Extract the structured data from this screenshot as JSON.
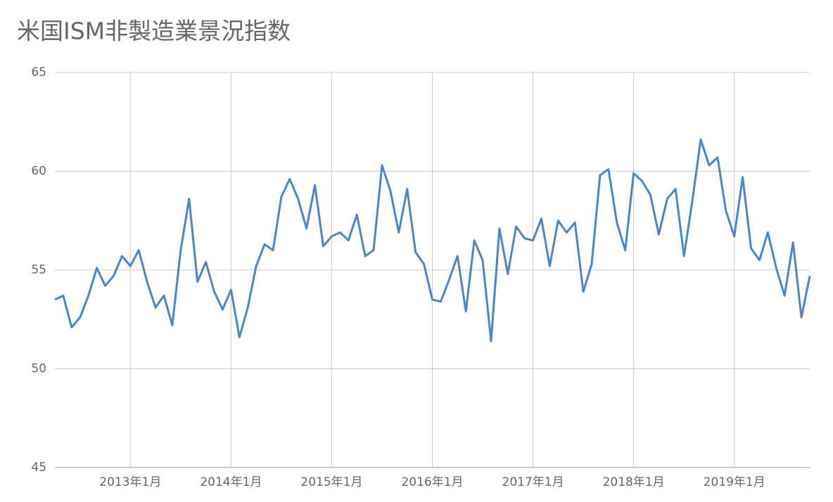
{
  "chart_data": {
    "type": "line",
    "title": "米国ISM非製造業景況指数",
    "x": [
      "2012-04",
      "2012-05",
      "2012-06",
      "2012-07",
      "2012-08",
      "2012-09",
      "2012-10",
      "2012-11",
      "2012-12",
      "2013-01",
      "2013-02",
      "2013-03",
      "2013-04",
      "2013-05",
      "2013-06",
      "2013-07",
      "2013-08",
      "2013-09",
      "2013-10",
      "2013-11",
      "2013-12",
      "2014-01",
      "2014-02",
      "2014-03",
      "2014-04",
      "2014-05",
      "2014-06",
      "2014-07",
      "2014-08",
      "2014-09",
      "2014-10",
      "2014-11",
      "2014-12",
      "2015-01",
      "2015-02",
      "2015-03",
      "2015-04",
      "2015-05",
      "2015-06",
      "2015-07",
      "2015-08",
      "2015-09",
      "2015-10",
      "2015-11",
      "2015-12",
      "2016-01",
      "2016-02",
      "2016-03",
      "2016-04",
      "2016-05",
      "2016-06",
      "2016-07",
      "2016-08",
      "2016-09",
      "2016-10",
      "2016-11",
      "2016-12",
      "2017-01",
      "2017-02",
      "2017-03",
      "2017-04",
      "2017-05",
      "2017-06",
      "2017-07",
      "2017-08",
      "2017-09",
      "2017-10",
      "2017-11",
      "2017-12",
      "2018-01",
      "2018-02",
      "2018-03",
      "2018-04",
      "2018-05",
      "2018-06",
      "2018-07",
      "2018-08",
      "2018-09",
      "2018-10",
      "2018-11",
      "2018-12",
      "2019-01",
      "2019-02",
      "2019-03",
      "2019-04",
      "2019-05",
      "2019-06",
      "2019-07",
      "2019-08",
      "2019-09",
      "2019-10"
    ],
    "series": [
      {
        "color": "#4a86c8",
        "values": [
          53.5,
          53.7,
          52.1,
          52.6,
          53.7,
          55.1,
          54.2,
          54.7,
          55.7,
          55.2,
          56.0,
          54.4,
          53.1,
          53.7,
          52.2,
          56.0,
          58.6,
          54.4,
          55.4,
          53.9,
          53.0,
          54.0,
          51.6,
          53.1,
          55.2,
          56.3,
          56.0,
          58.7,
          59.6,
          58.6,
          57.1,
          59.3,
          56.2,
          56.7,
          56.9,
          56.5,
          57.8,
          55.7,
          56.0,
          60.3,
          59.0,
          56.9,
          59.1,
          55.9,
          55.3,
          53.5,
          53.4,
          54.5,
          55.7,
          52.9,
          56.5,
          55.5,
          51.4,
          57.1,
          54.8,
          57.2,
          56.6,
          56.5,
          57.6,
          55.2,
          57.5,
          56.9,
          57.4,
          53.9,
          55.3,
          59.8,
          60.1,
          57.4,
          56.0,
          59.9,
          59.5,
          58.8,
          56.8,
          58.6,
          59.1,
          55.7,
          58.5,
          61.6,
          60.3,
          60.7,
          58.0,
          56.7,
          59.7,
          56.1,
          55.5,
          56.9,
          55.1,
          53.7,
          56.4,
          52.6,
          54.7
        ]
      }
    ],
    "xlim": [
      "2012-04",
      "2019-10"
    ],
    "xticks": [
      {
        "value": "2013-01",
        "label": "2013年1月"
      },
      {
        "value": "2014-01",
        "label": "2014年1月"
      },
      {
        "value": "2015-01",
        "label": "2015年1月"
      },
      {
        "value": "2016-01",
        "label": "2016年1月"
      },
      {
        "value": "2017-01",
        "label": "2017年1月"
      },
      {
        "value": "2018-01",
        "label": "2018年1月"
      },
      {
        "value": "2019-01",
        "label": "2019年1月"
      }
    ],
    "ylim": [
      45,
      65
    ],
    "yticks": [
      45,
      50,
      55,
      60,
      65
    ],
    "grid": true
  }
}
